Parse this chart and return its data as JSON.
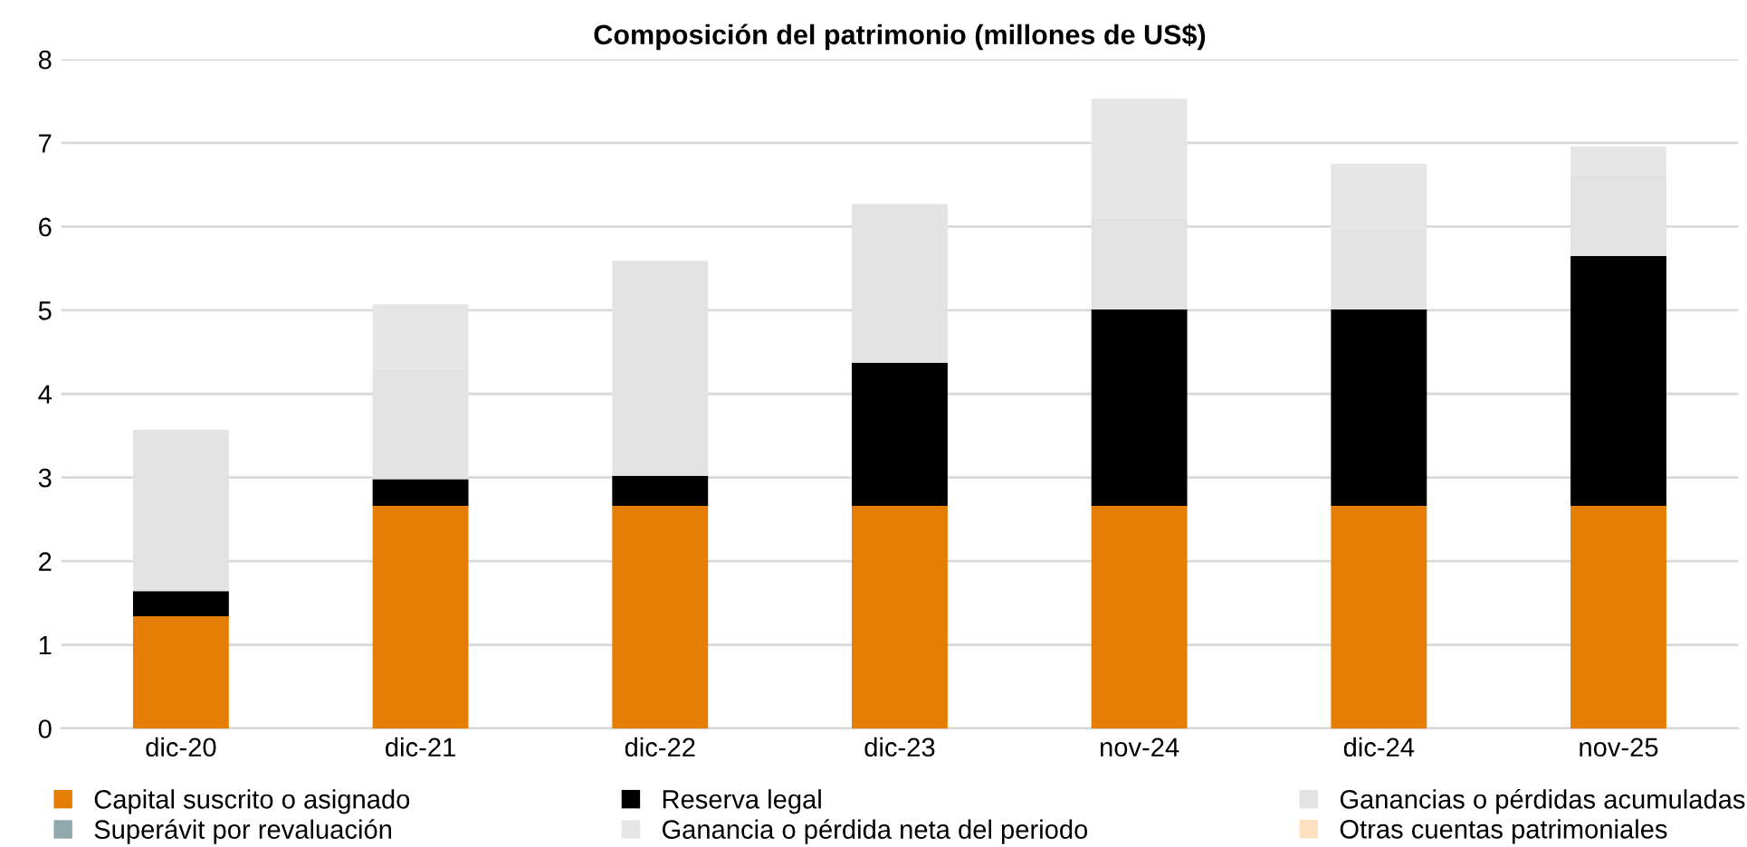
{
  "chart_data": {
    "type": "bar",
    "title": "Composición del patrimonio (millones de US$)",
    "categories": [
      "dic-20",
      "dic-21",
      "dic-22",
      "dic-23",
      "nov-24",
      "dic-24",
      "nov-25"
    ],
    "stacked": true,
    "series": [
      {
        "name": "Capital suscrito o asignado",
        "color": "#e57e04",
        "values": [
          1.34,
          2.66,
          2.66,
          2.66,
          2.66,
          2.66,
          2.66
        ]
      },
      {
        "name": "Reserva legal",
        "color": "#000000",
        "values": [
          0.3,
          0.32,
          0.36,
          1.71,
          2.35,
          2.35,
          2.99
        ]
      },
      {
        "name": "Ganancias o pérdidas acumuladas",
        "color": "#e3e3e3",
        "values": [
          1.93,
          1.32,
          2.57,
          1.9,
          1.1,
          0.97,
          0.96
        ]
      },
      {
        "name": "Superávit por revaluación",
        "color": "#8fa9ad",
        "values": [
          0,
          0,
          0,
          0,
          0,
          0,
          0
        ]
      },
      {
        "name": "Ganancia o pérdida neta del periodo",
        "color": "#e6e6e6",
        "values": [
          0,
          0.77,
          0,
          0,
          1.42,
          0.77,
          0.35
        ]
      },
      {
        "name": "Otras cuentas patrimoniales",
        "color": "#fde0c0",
        "values": [
          0,
          0,
          0,
          0,
          0,
          0,
          0
        ]
      }
    ],
    "ylim": [
      0,
      8
    ],
    "yticks": [
      0,
      1,
      2,
      3,
      4,
      5,
      6,
      7,
      8
    ],
    "grid": "y",
    "legend": "bottom"
  }
}
